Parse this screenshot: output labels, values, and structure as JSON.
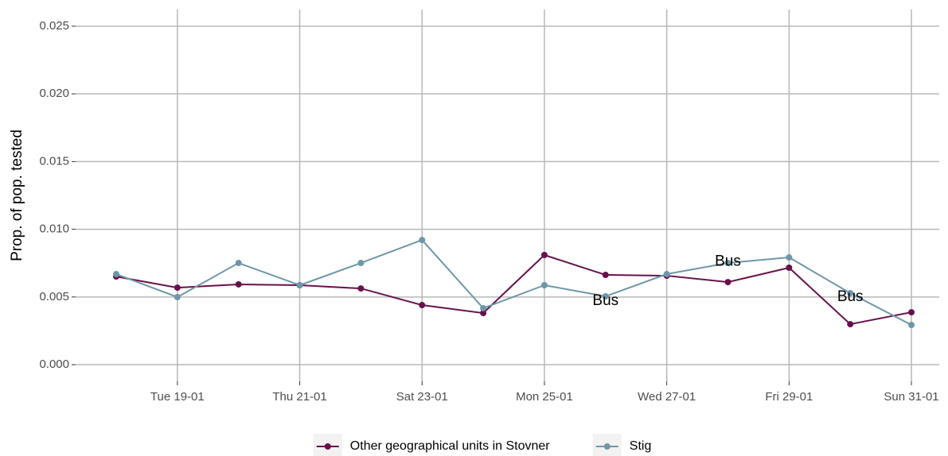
{
  "chart_data": {
    "type": "line",
    "ylabel": "Prop. of pop. tested",
    "categories": [
      null,
      "Tue 19-01",
      null,
      "Thu 21-01",
      null,
      "Sat 23-01",
      null,
      "Mon 25-01",
      null,
      "Wed 27-01",
      null,
      "Fri 29-01",
      null,
      "Sun 31-01"
    ],
    "series": [
      {
        "name": "Other geographical units in Stovner",
        "color": "#67114b",
        "values": [
          0.00651,
          0.00569,
          0.00593,
          0.00587,
          0.00563,
          0.0044,
          0.00381,
          0.0081,
          0.00663,
          0.00657,
          0.0061,
          0.00716,
          0.00299,
          0.00387
        ]
      },
      {
        "name": "Stig",
        "color": "#6e97a8",
        "values": [
          0.00669,
          0.00499,
          0.00751,
          0.00587,
          0.00751,
          0.00921,
          0.00417,
          0.00587,
          0.00505,
          0.00669,
          0.00751,
          0.00792,
          0.00528,
          0.00293
        ]
      }
    ],
    "annotations": [
      {
        "text": "Bus",
        "x": 8,
        "y": 0.0047
      },
      {
        "text": "Bus",
        "x": 10,
        "y": 0.0076
      },
      {
        "text": "Bus",
        "x": 12,
        "y": 0.005
      }
    ],
    "ylim": [
      -0.00123,
      0.02623
    ],
    "yticks": [
      {
        "value": 0,
        "label": "0.000"
      },
      {
        "value": 0.005,
        "label": "0.005"
      },
      {
        "value": 0.01,
        "label": "0.010"
      },
      {
        "value": 0.015,
        "label": "0.015"
      },
      {
        "value": 0.02,
        "label": "0.020"
      },
      {
        "value": 0.025,
        "label": "0.025"
      }
    ],
    "grid": true,
    "legend": "bottom"
  }
}
